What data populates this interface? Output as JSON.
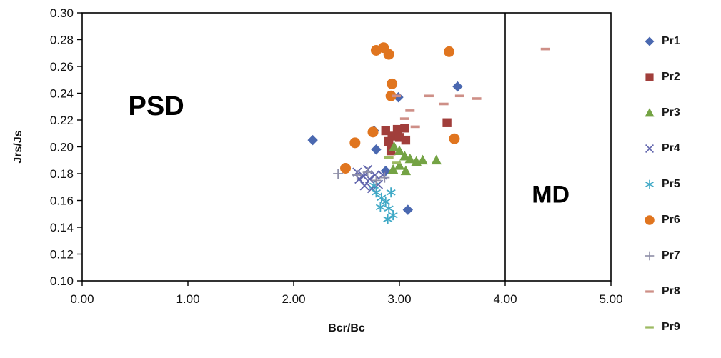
{
  "chart_data": {
    "type": "scatter",
    "title": "",
    "xlabel": "Bcr/Bc",
    "ylabel": "Jrs/Js",
    "xlim": [
      0.0,
      5.0
    ],
    "ylim": [
      0.1,
      0.3
    ],
    "xticks": [
      0,
      1,
      2,
      3,
      4,
      5
    ],
    "xtick_labels": [
      "0.00",
      "1.00",
      "2.00",
      "3.00",
      "4.00",
      "5.00"
    ],
    "yticks": [
      0.3,
      0.28,
      0.26,
      0.24,
      0.22,
      0.2,
      0.18,
      0.16,
      0.14,
      0.12,
      0.1
    ],
    "ytick_labels": [
      "0.30",
      "0.28",
      "0.26",
      "0.24",
      "0.22",
      "0.20",
      "0.18",
      "0.16",
      "0.14",
      "0.12",
      "0.10"
    ],
    "grid": false,
    "legend_position": "right",
    "divider_x": 4.0,
    "divider_color": "#000000",
    "annotations": [
      {
        "text": "PSD",
        "x": 0.7,
        "y": 0.231,
        "size": 38
      },
      {
        "text": "MD",
        "x": 4.43,
        "y": 0.165,
        "size": 34
      }
    ],
    "series": [
      {
        "name": "Pr1",
        "marker": "diamond",
        "color": "#4A68B0",
        "points": [
          [
            2.18,
            0.205
          ],
          [
            2.76,
            0.212
          ],
          [
            2.78,
            0.198
          ],
          [
            2.87,
            0.182
          ],
          [
            2.99,
            0.237
          ],
          [
            3.55,
            0.245
          ],
          [
            3.08,
            0.153
          ]
        ]
      },
      {
        "name": "Pr2",
        "marker": "square",
        "color": "#A13E3B",
        "points": [
          [
            2.87,
            0.212
          ],
          [
            2.93,
            0.208
          ],
          [
            3.0,
            0.207
          ],
          [
            3.06,
            0.205
          ],
          [
            2.92,
            0.197
          ],
          [
            2.98,
            0.213
          ],
          [
            3.05,
            0.214
          ],
          [
            2.9,
            0.204
          ],
          [
            3.45,
            0.218
          ]
        ]
      },
      {
        "name": "Pr3",
        "marker": "triangle",
        "color": "#74A344",
        "points": [
          [
            2.95,
            0.2
          ],
          [
            3.0,
            0.197
          ],
          [
            3.05,
            0.193
          ],
          [
            3.1,
            0.191
          ],
          [
            3.16,
            0.189
          ],
          [
            3.22,
            0.19
          ],
          [
            3.0,
            0.186
          ],
          [
            2.94,
            0.183
          ],
          [
            3.06,
            0.182
          ],
          [
            3.35,
            0.19
          ]
        ]
      },
      {
        "name": "Pr4",
        "marker": "x",
        "color": "#5F63AC",
        "points": [
          [
            2.6,
            0.181
          ],
          [
            2.62,
            0.176
          ],
          [
            2.66,
            0.178
          ],
          [
            2.67,
            0.171
          ],
          [
            2.7,
            0.183
          ],
          [
            2.72,
            0.176
          ],
          [
            2.74,
            0.169
          ],
          [
            2.77,
            0.179
          ],
          [
            2.8,
            0.172
          ],
          [
            2.84,
            0.179
          ]
        ]
      },
      {
        "name": "Pr5",
        "marker": "asterisk",
        "color": "#3FA9C6",
        "points": [
          [
            2.76,
            0.171
          ],
          [
            2.78,
            0.166
          ],
          [
            2.82,
            0.155
          ],
          [
            2.83,
            0.162
          ],
          [
            2.87,
            0.159
          ],
          [
            2.9,
            0.154
          ],
          [
            2.92,
            0.166
          ],
          [
            2.94,
            0.149
          ],
          [
            2.89,
            0.146
          ]
        ]
      },
      {
        "name": "Pr6",
        "marker": "circle",
        "color": "#E0751F",
        "points": [
          [
            2.78,
            0.272
          ],
          [
            2.85,
            0.274
          ],
          [
            2.9,
            0.269
          ],
          [
            3.47,
            0.271
          ],
          [
            2.93,
            0.247
          ],
          [
            2.92,
            0.238
          ],
          [
            2.58,
            0.203
          ],
          [
            2.75,
            0.211
          ],
          [
            3.52,
            0.206
          ],
          [
            2.49,
            0.184
          ]
        ]
      },
      {
        "name": "Pr7",
        "marker": "plus",
        "color": "#8E8FA8",
        "points": [
          [
            2.42,
            0.18
          ],
          [
            2.6,
            0.179
          ],
          [
            2.7,
            0.181
          ],
          [
            2.78,
            0.175
          ],
          [
            2.86,
            0.177
          ]
        ]
      },
      {
        "name": "Pr8",
        "marker": "dash",
        "color": "#CE8F87",
        "points": [
          [
            4.38,
            0.273
          ],
          [
            3.73,
            0.236
          ],
          [
            3.57,
            0.238
          ],
          [
            3.28,
            0.238
          ],
          [
            3.42,
            0.232
          ],
          [
            3.1,
            0.227
          ],
          [
            3.05,
            0.221
          ],
          [
            2.97,
            0.238
          ],
          [
            3.15,
            0.215
          ]
        ]
      },
      {
        "name": "Pr9",
        "marker": "dash",
        "color": "#9CBA62",
        "points": [
          [
            2.9,
            0.192
          ],
          [
            2.97,
            0.188
          ]
        ]
      }
    ]
  }
}
